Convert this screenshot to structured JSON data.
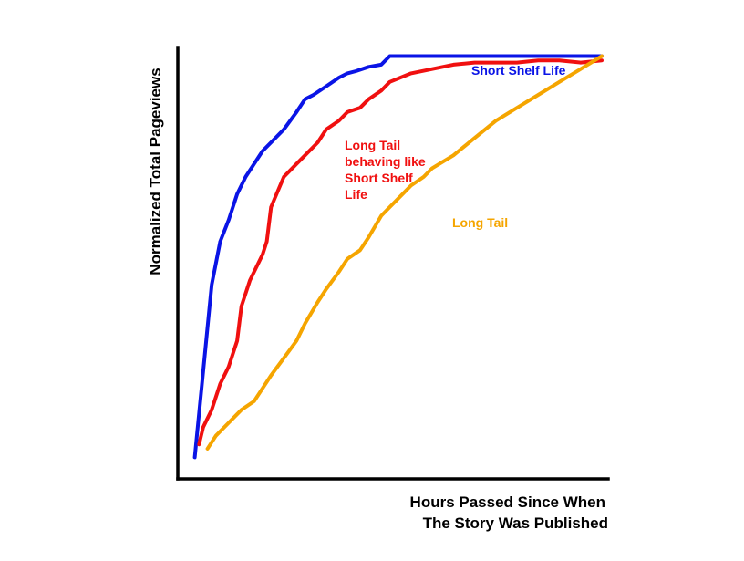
{
  "chart_data": {
    "type": "line",
    "title": "",
    "xlabel_lines": [
      "Hours Passed Since When",
      "The Story Was Published"
    ],
    "ylabel": "Normalized Total Pageviews",
    "xlim": [
      0,
      100
    ],
    "ylim": [
      0,
      100
    ],
    "grid": false,
    "legend": "none (series labelled directly on the chart)",
    "series": [
      {
        "name": "Short Shelf Life",
        "color": "#0a14e6",
        "label_lines": [
          "Short Shelf Life"
        ],
        "x": [
          4,
          6,
          8,
          10,
          12,
          14,
          16,
          18,
          20,
          22,
          25,
          28,
          30,
          32,
          35,
          38,
          40,
          42,
          45,
          48,
          50,
          60,
          70,
          80,
          90,
          100
        ],
        "y": [
          5,
          25,
          45,
          55,
          60,
          66,
          70,
          73,
          76,
          78,
          81,
          85,
          88,
          89,
          91,
          93,
          94,
          94.5,
          95.5,
          96,
          98,
          98,
          98,
          98,
          98,
          98
        ]
      },
      {
        "name": "Long Tail behaving like Short Shelf Life",
        "color": "#f01010",
        "label_lines": [
          "Long Tail",
          "behaving like",
          "Short Shelf",
          "Life"
        ],
        "x": [
          5,
          6,
          8,
          10,
          12,
          14,
          15,
          17,
          20,
          21,
          22,
          25,
          28,
          30,
          33,
          35,
          38,
          40,
          43,
          45,
          48,
          50,
          55,
          60,
          65,
          70,
          75,
          80,
          85,
          90,
          95,
          100
        ],
        "y": [
          8,
          12,
          16,
          22,
          26,
          32,
          40,
          46,
          52,
          55,
          63,
          70,
          73,
          75,
          78,
          81,
          83,
          85,
          86,
          88,
          90,
          92,
          94,
          95,
          96,
          96.5,
          96.5,
          96.5,
          97,
          97,
          96.5,
          97
        ]
      },
      {
        "name": "Long Tail",
        "color": "#f5a500",
        "label_lines": [
          "Long Tail"
        ],
        "x": [
          7,
          9,
          12,
          15,
          18,
          20,
          22,
          25,
          28,
          30,
          33,
          35,
          38,
          40,
          43,
          45,
          48,
          50,
          53,
          55,
          58,
          60,
          65,
          70,
          75,
          80,
          85,
          90,
          95,
          100
        ],
        "y": [
          7,
          10,
          13,
          16,
          18,
          21,
          24,
          28,
          32,
          36,
          41,
          44,
          48,
          51,
          53,
          56,
          61,
          63,
          66,
          68,
          70,
          72,
          75,
          79,
          83,
          86,
          89,
          92,
          95,
          98
        ]
      }
    ]
  }
}
